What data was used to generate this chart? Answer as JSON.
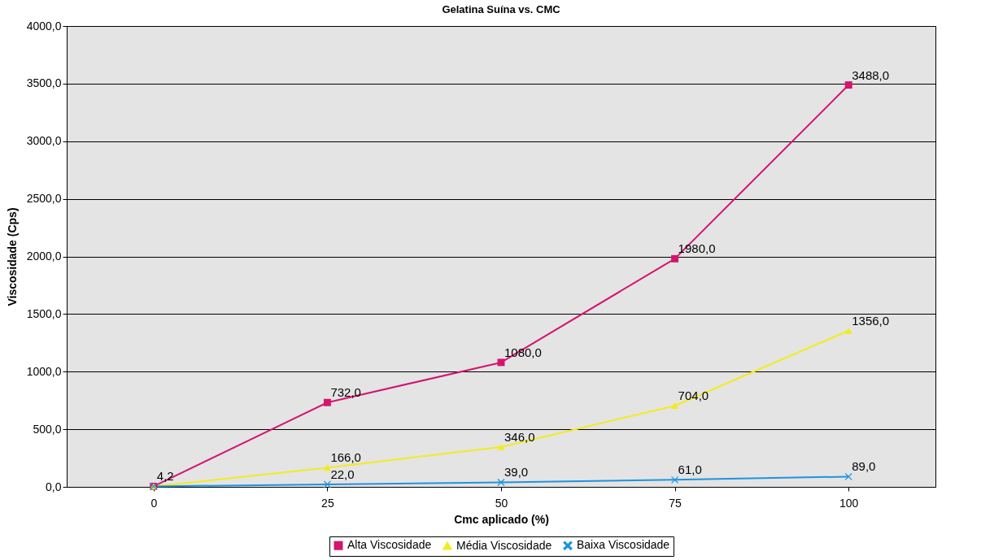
{
  "chart_data": {
    "type": "line",
    "title": "Gelatina Suína vs. CMC",
    "xlabel": "Cmc aplicado (%)",
    "ylabel": "Viscosidade (Cps)",
    "categories": [
      "0",
      "25",
      "50",
      "75",
      "100"
    ],
    "series": [
      {
        "name": "Alta Viscosidade",
        "color": "#d4146e",
        "marker": "square",
        "values": [
          4.2,
          732,
          1080,
          1980,
          3488
        ],
        "value_labels": [
          null,
          "732,0",
          "1080,0",
          "1980,0",
          "3488,0"
        ]
      },
      {
        "name": "Média Viscosidade",
        "color": "#f2ec1c",
        "marker": "triangle",
        "values": [
          4.2,
          166,
          346,
          704,
          1356
        ],
        "value_labels": [
          null,
          "166,0",
          "346,0",
          "704,0",
          "1356,0"
        ]
      },
      {
        "name": "Baixa Viscosidade",
        "color": "#1f93e0",
        "marker": "cross",
        "values": [
          4.2,
          22,
          39,
          61,
          89
        ],
        "value_labels": [
          "4,2",
          "22,0",
          "39,0",
          "61,0",
          "89,0"
        ]
      }
    ],
    "ylim": [
      0,
      4000
    ],
    "yticks": [
      {
        "value": 0,
        "label": "0,0"
      },
      {
        "value": 500,
        "label": "500,0"
      },
      {
        "value": 1000,
        "label": "1000,0"
      },
      {
        "value": 1500,
        "label": "1500,0"
      },
      {
        "value": 2000,
        "label": "2000,0"
      },
      {
        "value": 2500,
        "label": "2500,0"
      },
      {
        "value": 3000,
        "label": "3000,0"
      },
      {
        "value": 3500,
        "label": "3500,0"
      },
      {
        "value": 4000,
        "label": "4000,0"
      }
    ],
    "grid": "y",
    "legend": "bottom"
  }
}
